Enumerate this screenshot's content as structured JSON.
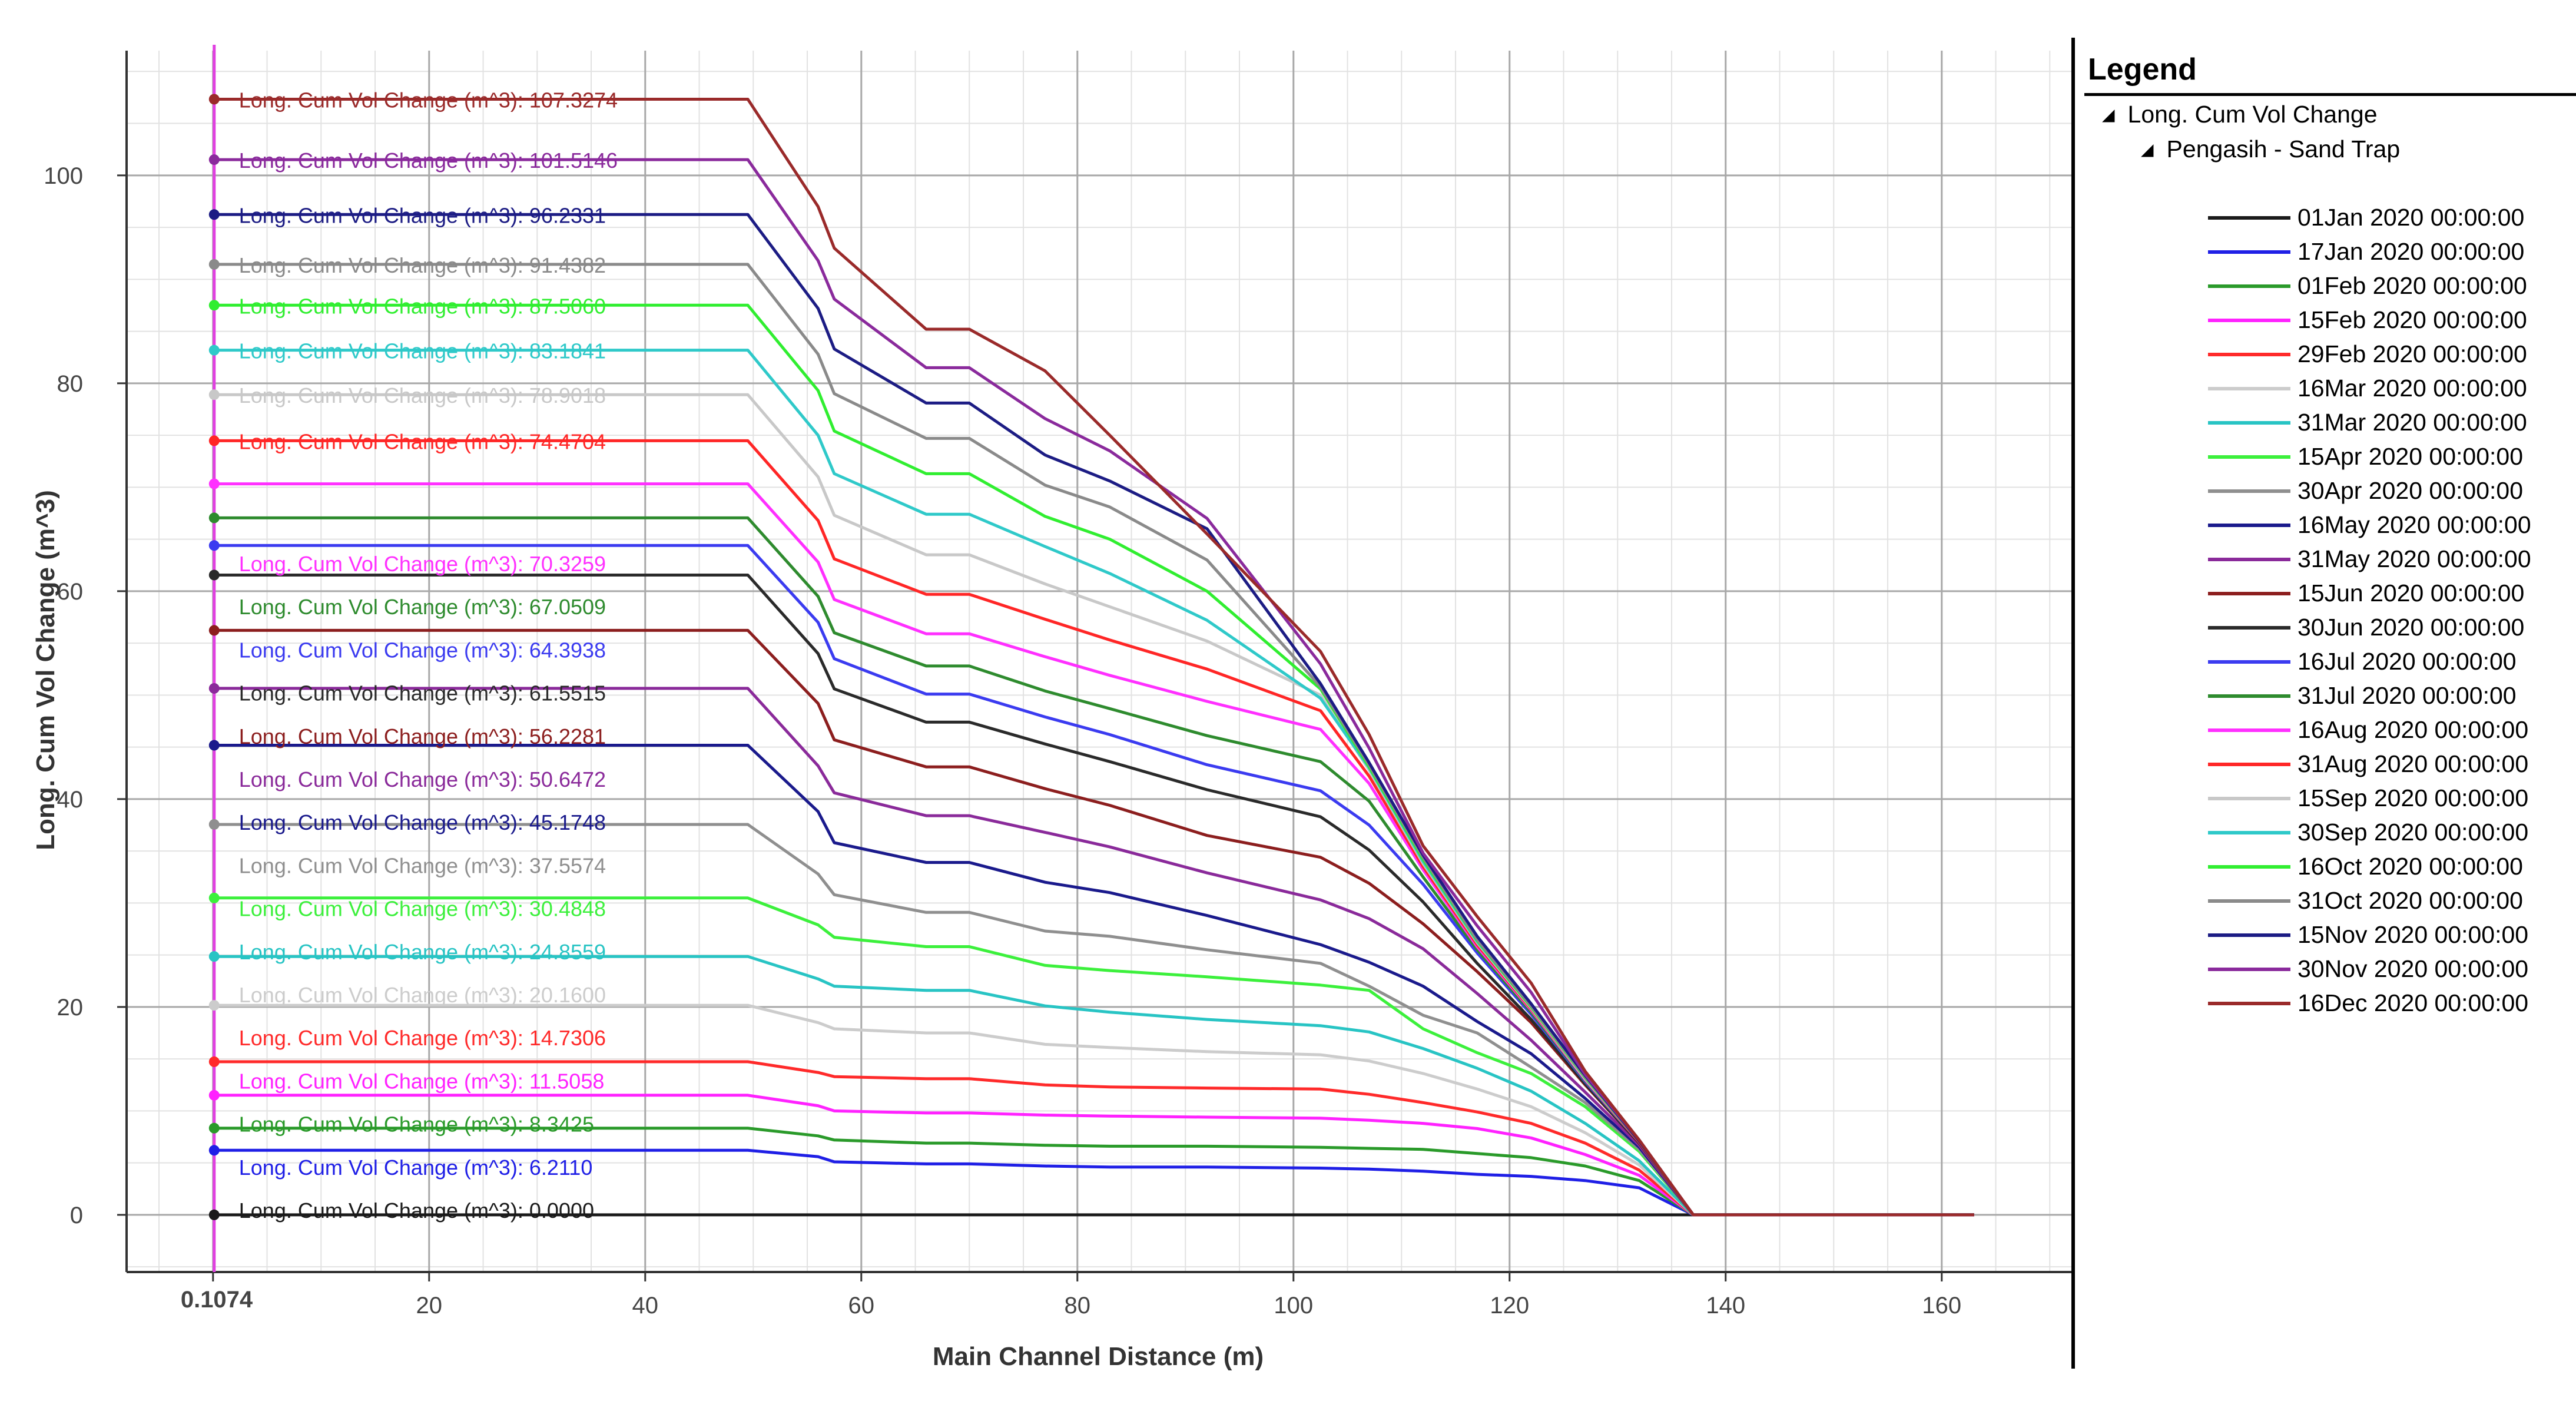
{
  "chart_data": {
    "type": "line",
    "title": "",
    "xlabel": "Main Channel Distance (m)",
    "ylabel": "Long. Cum Vol Change (m^3)",
    "xlim": [
      -8,
      172
    ],
    "ylim": [
      -5.5,
      112
    ],
    "x_ticks": [
      0,
      20,
      40,
      60,
      80,
      100,
      120,
      140,
      160
    ],
    "y_ticks": [
      0,
      20,
      40,
      60,
      80,
      100
    ],
    "origin_label": "0.1074",
    "grid": true,
    "cursor_x": 0.1074,
    "legend_position": "right",
    "label_prefix": "Long. Cum Vol Change (m^3): ",
    "x": [
      0,
      49.5,
      56,
      57.5,
      66,
      70,
      77,
      83,
      92,
      102.5,
      107,
      112,
      117,
      122,
      127,
      132,
      137,
      163
    ],
    "series": [
      {
        "name": "01Jan 2020 00:00:00",
        "color": "#1a1a1a",
        "width": 5,
        "final": 0.0,
        "label": "0.0000",
        "values": [
          0,
          0,
          0,
          0,
          0,
          0,
          0,
          0,
          0,
          0,
          0,
          0,
          0,
          0,
          0,
          0,
          0,
          0
        ]
      },
      {
        "name": "17Jan 2020 00:00:00",
        "color": "#1f1fe6",
        "width": 5,
        "final": 6.211,
        "label": "6.2110",
        "values": [
          6.211,
          6.211,
          5.6,
          5.1,
          4.9,
          4.9,
          4.7,
          4.6,
          4.6,
          4.5,
          4.4,
          4.2,
          3.9,
          3.7,
          3.3,
          2.6,
          0,
          0
        ]
      },
      {
        "name": "01Feb 2020 00:00:00",
        "color": "#2a9a2a",
        "width": 5,
        "final": 8.3425,
        "label": "8.3425",
        "values": [
          8.3425,
          8.3425,
          7.6,
          7.2,
          6.9,
          6.9,
          6.7,
          6.6,
          6.6,
          6.5,
          6.4,
          6.3,
          5.9,
          5.5,
          4.7,
          3.3,
          0,
          0
        ]
      },
      {
        "name": "15Feb 2020 00:00:00",
        "color": "#ff22ff",
        "width": 5,
        "final": 11.5058,
        "label": "11.5058",
        "values": [
          11.5058,
          11.5058,
          10.5,
          10.0,
          9.8,
          9.8,
          9.6,
          9.5,
          9.4,
          9.3,
          9.1,
          8.8,
          8.3,
          7.4,
          5.8,
          3.8,
          0,
          0
        ]
      },
      {
        "name": "29Feb 2020 00:00:00",
        "color": "#ff2a2a",
        "width": 5,
        "final": 14.7306,
        "label": "14.7306",
        "values": [
          14.7306,
          14.7306,
          13.7,
          13.3,
          13.1,
          13.1,
          12.5,
          12.3,
          12.2,
          12.1,
          11.6,
          10.8,
          9.9,
          8.8,
          6.9,
          4.3,
          0,
          0
        ]
      },
      {
        "name": "16Mar 2020 00:00:00",
        "color": "#cccccc",
        "width": 5,
        "final": 20.16,
        "label": "20.1600",
        "values": [
          20.16,
          20.16,
          18.5,
          17.9,
          17.5,
          17.5,
          16.4,
          16.1,
          15.7,
          15.4,
          14.8,
          13.6,
          12.1,
          10.4,
          7.9,
          4.8,
          0,
          0
        ]
      },
      {
        "name": "31Mar 2020 00:00:00",
        "color": "#28c4c4",
        "width": 5,
        "final": 24.8559,
        "label": "24.8559",
        "values": [
          24.8559,
          24.8559,
          22.7,
          22.0,
          21.6,
          21.6,
          20.1,
          19.5,
          18.8,
          18.2,
          17.6,
          16.0,
          14.1,
          11.9,
          8.8,
          5.2,
          0,
          0
        ]
      },
      {
        "name": "15Apr 2020 00:00:00",
        "color": "#3cf03c",
        "width": 5,
        "final": 30.4848,
        "label": "30.4848",
        "values": [
          30.4848,
          30.4848,
          27.9,
          26.7,
          25.8,
          25.8,
          24.0,
          23.5,
          22.9,
          22.1,
          21.6,
          17.9,
          15.6,
          13.6,
          10.4,
          6.1,
          0,
          0
        ]
      },
      {
        "name": "30Apr 2020 00:00:00",
        "color": "#8f8f8f",
        "width": 5,
        "final": 37.5574,
        "label": "37.5574",
        "values": [
          37.5574,
          37.5574,
          32.8,
          30.8,
          29.1,
          29.1,
          27.3,
          26.8,
          25.5,
          24.2,
          22.0,
          19.2,
          17.5,
          14.2,
          10.8,
          6.3,
          0,
          0
        ]
      },
      {
        "name": "16May 2020 00:00:00",
        "color": "#1a1a8c",
        "width": 5,
        "final": 45.1748,
        "label": "45.1748",
        "values": [
          45.1748,
          45.1748,
          38.8,
          35.8,
          33.9,
          33.9,
          32.0,
          31.0,
          28.8,
          26.0,
          24.3,
          22.0,
          18.6,
          15.5,
          11.2,
          6.5,
          0,
          0
        ]
      },
      {
        "name": "31May 2020 00:00:00",
        "color": "#8a2a9a",
        "width": 5,
        "final": 50.6472,
        "label": "50.6472",
        "values": [
          50.6472,
          50.6472,
          43.2,
          40.6,
          38.4,
          38.4,
          36.8,
          35.4,
          32.9,
          30.3,
          28.5,
          25.6,
          21.3,
          16.8,
          11.8,
          6.7,
          0,
          0
        ]
      },
      {
        "name": "15Jun 2020 00:00:00",
        "color": "#8c1e1e",
        "width": 5,
        "final": 56.2281,
        "label": "56.2281",
        "values": [
          56.2281,
          56.2281,
          49.2,
          45.7,
          43.1,
          43.1,
          41.0,
          39.4,
          36.5,
          34.4,
          31.9,
          28.0,
          23.4,
          18.5,
          12.5,
          6.9,
          0,
          0
        ]
      },
      {
        "name": "30Jun 2020 00:00:00",
        "color": "#2a2a2a",
        "width": 5,
        "final": 61.5515,
        "label": "61.5515",
        "values": [
          61.5515,
          61.5515,
          54.0,
          50.6,
          47.4,
          47.4,
          45.3,
          43.6,
          40.9,
          38.3,
          35.1,
          30.1,
          24.2,
          18.8,
          12.6,
          6.9,
          0,
          0
        ]
      },
      {
        "name": "16Jul 2020 00:00:00",
        "color": "#3b3bf0",
        "width": 5,
        "final": 64.3938,
        "label": "64.3938",
        "values": [
          64.3938,
          64.3938,
          57.0,
          53.5,
          50.1,
          50.1,
          47.9,
          46.2,
          43.3,
          40.8,
          37.5,
          31.8,
          25.2,
          19.3,
          12.8,
          7.0,
          0,
          0
        ]
      },
      {
        "name": "31Jul 2020 00:00:00",
        "color": "#2e8b2e",
        "width": 5,
        "final": 67.0509,
        "label": "67.0509",
        "values": [
          67.0509,
          67.0509,
          59.5,
          56.0,
          52.8,
          52.8,
          50.4,
          48.7,
          46.1,
          43.6,
          39.8,
          32.5,
          25.5,
          19.5,
          12.9,
          7.0,
          0,
          0
        ]
      },
      {
        "name": "16Aug 2020 00:00:00",
        "color": "#ff30ff",
        "width": 5,
        "final": 70.3259,
        "label": "70.3259",
        "values": [
          70.3259,
          70.3259,
          62.8,
          59.2,
          55.9,
          55.9,
          53.7,
          51.9,
          49.4,
          46.7,
          41.5,
          33.2,
          25.8,
          19.7,
          13.0,
          7.0,
          0,
          0
        ]
      },
      {
        "name": "31Aug 2020 00:00:00",
        "color": "#ff2626",
        "width": 5,
        "final": 74.4704,
        "label": "74.4704",
        "values": [
          74.4704,
          74.4704,
          66.8,
          63.1,
          59.7,
          59.7,
          57.3,
          55.3,
          52.5,
          48.5,
          42.2,
          33.5,
          26.0,
          19.8,
          13.1,
          7.0,
          0,
          0
        ]
      },
      {
        "name": "15Sep 2020 00:00:00",
        "color": "#c8c8c8",
        "width": 5,
        "final": 78.9018,
        "label": "78.9018",
        "values": [
          78.9018,
          78.9018,
          71.0,
          67.3,
          63.5,
          63.5,
          60.7,
          58.5,
          55.2,
          50.0,
          42.8,
          33.8,
          26.2,
          19.9,
          13.1,
          7.1,
          0,
          0
        ]
      },
      {
        "name": "30Sep 2020 00:00:00",
        "color": "#2fc9c9",
        "width": 5,
        "final": 83.1841,
        "label": "83.1841",
        "values": [
          83.1841,
          83.1841,
          75.0,
          71.3,
          67.4,
          67.4,
          64.3,
          61.7,
          57.2,
          49.7,
          43.0,
          34.0,
          26.3,
          20.0,
          13.2,
          7.1,
          0,
          0
        ]
      },
      {
        "name": "16Oct 2020 00:00:00",
        "color": "#30ee30",
        "width": 5,
        "final": 87.506,
        "label": "87.5060",
        "values": [
          87.506,
          87.506,
          79.3,
          75.4,
          71.3,
          71.3,
          67.2,
          65.0,
          60.0,
          50.6,
          43.1,
          34.2,
          26.4,
          20.0,
          13.2,
          7.1,
          0,
          0
        ]
      },
      {
        "name": "31Oct 2020 00:00:00",
        "color": "#8a8a8a",
        "width": 5,
        "final": 91.4382,
        "label": "91.4382",
        "values": [
          91.4382,
          91.4382,
          82.8,
          79.0,
          74.7,
          74.7,
          70.2,
          68.1,
          63.0,
          50.8,
          43.3,
          34.4,
          26.5,
          20.1,
          13.3,
          7.1,
          0,
          0
        ]
      },
      {
        "name": "15Nov 2020 00:00:00",
        "color": "#1c1c84",
        "width": 5,
        "final": 96.2331,
        "label": "96.2331",
        "values": [
          96.2331,
          96.2331,
          87.2,
          83.3,
          78.1,
          78.1,
          73.1,
          70.6,
          66.0,
          51.1,
          43.5,
          34.6,
          26.8,
          20.3,
          13.4,
          7.1,
          0,
          0
        ]
      },
      {
        "name": "30Nov 2020 00:00:00",
        "color": "#8a2a9c",
        "width": 5,
        "final": 101.5146,
        "label": "101.5146",
        "values": [
          101.5146,
          101.5146,
          91.8,
          88.1,
          81.5,
          81.5,
          76.6,
          73.5,
          67.0,
          53.0,
          44.9,
          34.8,
          27.8,
          21.4,
          13.5,
          7.2,
          0,
          0
        ]
      },
      {
        "name": "16Dec 2020 00:00:00",
        "color": "#9a2a2a",
        "width": 5,
        "final": 107.3274,
        "label": "107.3274",
        "values": [
          107.3274,
          107.3274,
          97.0,
          93.0,
          85.2,
          85.2,
          81.2,
          75.0,
          65.5,
          54.2,
          46.2,
          35.5,
          28.7,
          22.3,
          13.8,
          7.2,
          0,
          0
        ]
      }
    ],
    "series_label_order": [
      "01Jan 2020 00:00:00",
      "17Jan 2020 00:00:00",
      "01Feb 2020 00:00:00",
      "15Feb 2020 00:00:00",
      "29Feb 2020 00:00:00",
      "16Mar 2020 00:00:00",
      "31Mar 2020 00:00:00",
      "15Apr 2020 00:00:00",
      "30Apr 2020 00:00:00",
      "16May 2020 00:00:00",
      "31May 2020 00:00:00",
      "15Jun 2020 00:00:00",
      "30Jun 2020 00:00:00",
      "16Jul 2020 00:00:00",
      "31Jul 2020 00:00:00",
      "16Aug 2020 00:00:00",
      "31Aug 2020 00:00:00",
      "15Sep 2020 00:00:00",
      "30Sep 2020 00:00:00",
      "16Oct 2020 00:00:00",
      "31Oct 2020 00:00:00",
      "15Nov 2020 00:00:00",
      "30Nov 2020 00:00:00",
      "16Dec 2020 00:00:00"
    ]
  },
  "legend": {
    "title": "Legend",
    "group": "Long. Cum Vol Change",
    "subgroup": "Pengasih - Sand Trap",
    "expand_icon": "collapse-triangle-icon"
  }
}
